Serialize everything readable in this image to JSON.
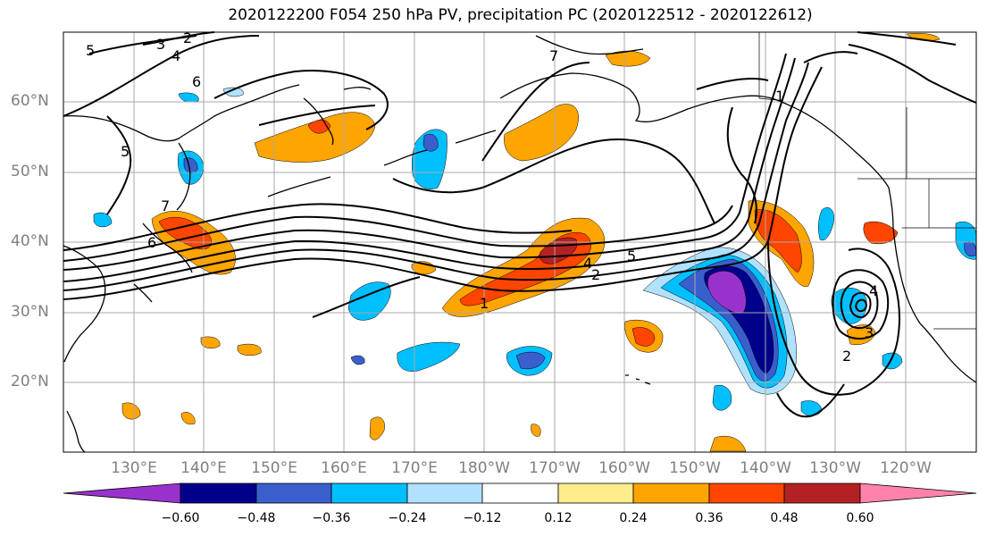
{
  "title": "2020122200 F054 250 hPa PV, precipitation PC (2020122512 - 2020122612)",
  "lat_labels": [
    "60°N",
    "50°N",
    "40°N",
    "30°N",
    "20°N"
  ],
  "lon_labels": [
    "130°E",
    "140°E",
    "150°E",
    "160°E",
    "170°E",
    "180°W",
    "170°W",
    "160°W",
    "150°W",
    "140°W",
    "130°W",
    "120°W"
  ],
  "pv_contour_labels": [
    "5",
    "3",
    "2",
    "4",
    "6",
    "7",
    "5",
    "7",
    "6",
    "4",
    "1",
    "5",
    "2",
    "1",
    "4",
    "3",
    "2"
  ],
  "colorbar": {
    "tick_labels": [
      "−0.60",
      "−0.48",
      "−0.36",
      "−0.24",
      "−0.12",
      "0.12",
      "0.24",
      "0.36",
      "0.48",
      "0.60"
    ],
    "colors": [
      "#9932CC",
      "#00008B",
      "#3A5FCD",
      "#00BFFF",
      "#B0E2FF",
      "#FFFFFF",
      "#FFEC8B",
      "#FFA500",
      "#FF4500",
      "#B22222",
      "#FF82AB"
    ]
  }
}
